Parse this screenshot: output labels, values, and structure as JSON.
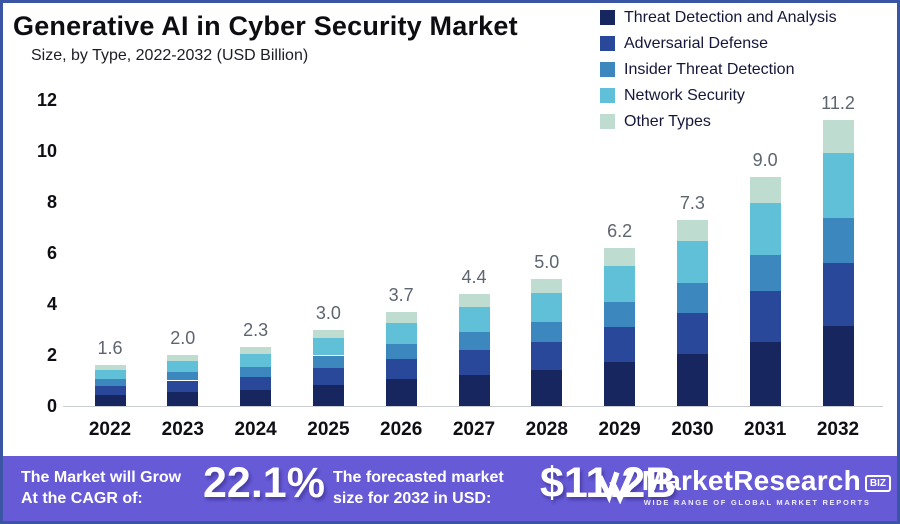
{
  "header": {
    "title": "Generative AI in Cyber Security Market",
    "subtitle": "Size, by Type, 2022-2032 (USD Billion)"
  },
  "legend": {
    "items": [
      {
        "label": "Threat Detection and Analysis",
        "color": "#17265e"
      },
      {
        "label": "Adversarial Defense",
        "color": "#2a489a"
      },
      {
        "label": "Insider Threat Detection",
        "color": "#3c87bd"
      },
      {
        "label": "Network Security",
        "color": "#5fc0d8"
      },
      {
        "label": "Other Types",
        "color": "#bedcd0"
      }
    ]
  },
  "chart_data": {
    "type": "bar",
    "stacked": true,
    "title": "Generative AI in Cyber Security Market",
    "subtitle": "Size, by Type, 2022-2032 (USD Billion)",
    "xlabel": "",
    "ylabel": "USD Billion",
    "ylim": [
      0,
      12
    ],
    "yticks": [
      0,
      2,
      4,
      6,
      8,
      10,
      12
    ],
    "grid": false,
    "legend_position": "top-right",
    "categories": [
      "2022",
      "2023",
      "2024",
      "2025",
      "2026",
      "2027",
      "2028",
      "2029",
      "2030",
      "2031",
      "2032"
    ],
    "series": [
      {
        "name": "Threat Detection and Analysis",
        "color": "#17265e",
        "values": [
          0.45,
          0.56,
          0.64,
          0.84,
          1.04,
          1.23,
          1.4,
          1.74,
          2.04,
          2.52,
          3.14
        ]
      },
      {
        "name": "Adversarial Defense",
        "color": "#2a489a",
        "values": [
          0.35,
          0.44,
          0.51,
          0.66,
          0.81,
          0.97,
          1.1,
          1.36,
          1.61,
          1.98,
          2.46
        ]
      },
      {
        "name": "Insider Threat Detection",
        "color": "#3c87bd",
        "values": [
          0.26,
          0.32,
          0.37,
          0.48,
          0.59,
          0.7,
          0.8,
          0.99,
          1.17,
          1.44,
          1.79
        ]
      },
      {
        "name": "Network Security",
        "color": "#5fc0d8",
        "values": [
          0.36,
          0.45,
          0.52,
          0.68,
          0.83,
          0.99,
          1.13,
          1.4,
          1.64,
          2.03,
          2.52
        ]
      },
      {
        "name": "Other Types",
        "color": "#bedcd0",
        "values": [
          0.18,
          0.23,
          0.26,
          0.34,
          0.43,
          0.51,
          0.57,
          0.71,
          0.84,
          1.03,
          1.29
        ]
      }
    ],
    "totals": [
      1.6,
      2.0,
      2.3,
      3.0,
      3.7,
      4.4,
      5.0,
      6.2,
      7.3,
      9.0,
      11.2
    ]
  },
  "banner": {
    "bg_color": "#665ad6",
    "cagr_label_line1": "The Market will Grow",
    "cagr_label_line2": "At the CAGR of:",
    "cagr_value": "22.1%",
    "forecast_label_line1": "The forecasted market",
    "forecast_label_line2": "size for 2032 in USD:",
    "forecast_value": "$11.2B",
    "brand": {
      "name": "MarketResearch",
      "badge": "BIZ",
      "tagline": "WIDE RANGE OF GLOBAL MARKET REPORTS",
      "icon": "double-checkmark-icon"
    }
  }
}
